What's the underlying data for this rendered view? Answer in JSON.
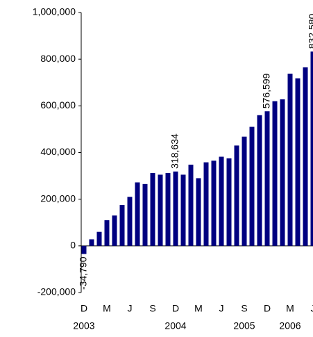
{
  "chart_data": {
    "type": "bar",
    "color": "#000080",
    "categories": [
      "D",
      null,
      null,
      "M",
      null,
      null,
      "J",
      null,
      null,
      "S",
      null,
      null,
      "D",
      null,
      null,
      "M",
      null,
      null,
      "J",
      null,
      null,
      "S",
      null,
      null,
      "D",
      null,
      null,
      "M",
      null,
      null,
      "J"
    ],
    "x_years": [
      "2003",
      null,
      null,
      null,
      null,
      null,
      null,
      null,
      null,
      null,
      null,
      null,
      "2004",
      null,
      null,
      null,
      null,
      null,
      null,
      null,
      null,
      "2005",
      null,
      null,
      null,
      null,
      null,
      "2006",
      null,
      null,
      null
    ],
    "values": [
      -34790,
      28000,
      60000,
      110000,
      130000,
      175000,
      210000,
      272000,
      265000,
      312000,
      305000,
      312000,
      318634,
      305000,
      348000,
      290000,
      358000,
      365000,
      382000,
      375000,
      430000,
      468000,
      510000,
      560000,
      576599,
      620000,
      628000,
      738000,
      718000,
      765000,
      832580
    ],
    "value_labels": [
      "-34,790",
      null,
      null,
      null,
      null,
      null,
      null,
      null,
      null,
      null,
      null,
      null,
      "318,634",
      null,
      null,
      null,
      null,
      null,
      null,
      null,
      null,
      null,
      null,
      null,
      "576,599",
      null,
      null,
      null,
      null,
      null,
      "832,580"
    ],
    "ylim": [
      -200000,
      1000000
    ],
    "yticks": [
      {
        "value": -200000,
        "label": "-200,000"
      },
      0,
      {
        "value": 200000,
        "label": "200,000"
      },
      {
        "value": 400000,
        "label": "400,000"
      },
      {
        "value": 600000,
        "label": "600,000"
      },
      {
        "value": 800000,
        "label": "800,000"
      },
      {
        "value": 1000000,
        "label": "1,000,000"
      }
    ]
  }
}
